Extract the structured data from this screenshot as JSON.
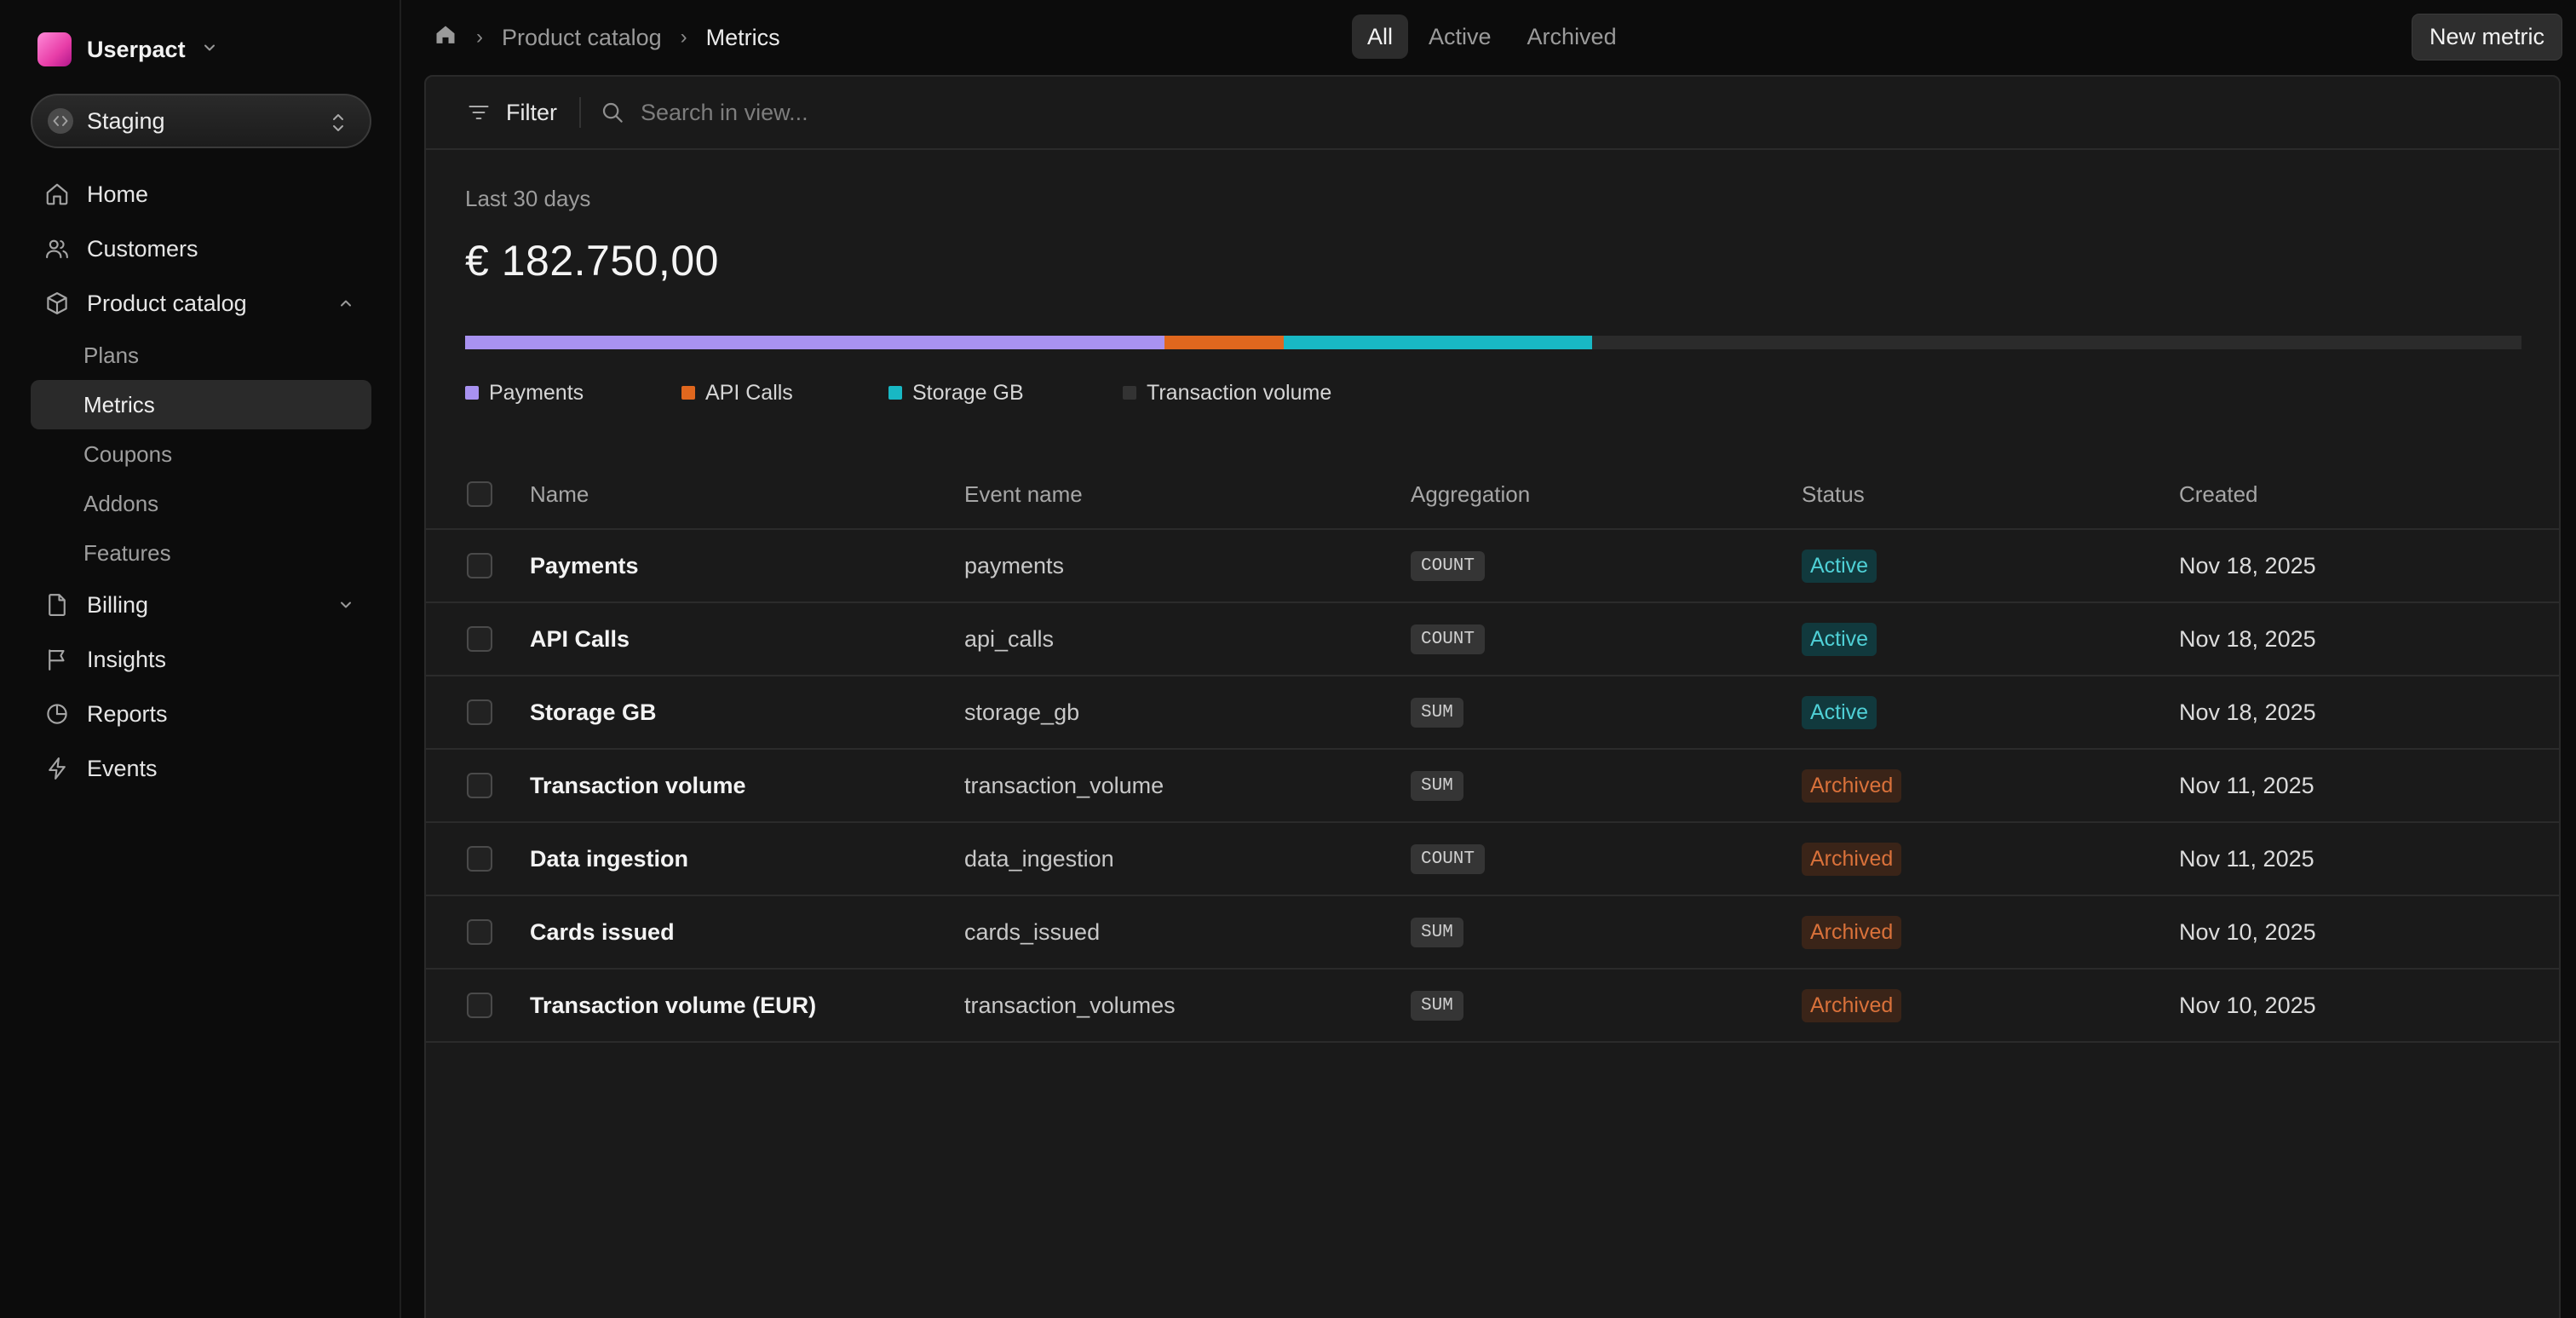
{
  "sidebar": {
    "org_name": "Userpact",
    "environment": "Staging",
    "nav": {
      "home": "Home",
      "customers": "Customers",
      "product_catalog": "Product catalog",
      "billing": "Billing",
      "insights": "Insights",
      "reports": "Reports",
      "events": "Events"
    },
    "product_catalog_items": [
      "Plans",
      "Metrics",
      "Coupons",
      "Addons",
      "Features"
    ],
    "active_item": "Metrics"
  },
  "breadcrumb": {
    "parent": "Product catalog",
    "current": "Metrics"
  },
  "filter_tabs": {
    "all": "All",
    "active": "Active",
    "archived": "Archived",
    "selected": "All"
  },
  "new_metric_label": "New metric",
  "toolbar": {
    "filter_label": "Filter",
    "search_placeholder": "Search in view..."
  },
  "summary": {
    "period": "Last 30 days",
    "total": "€ 182.750,00"
  },
  "usage_bar": {
    "segments": [
      {
        "name": "Payments",
        "share": 0.34,
        "color": "#a892f0"
      },
      {
        "name": "API Calls",
        "share": 0.058,
        "color": "#e0671e"
      },
      {
        "name": "Storage GB",
        "share": 0.15,
        "color": "#18b8c4"
      },
      {
        "name": "Transaction volume",
        "share": 0.452,
        "color": "#2b2b2b"
      }
    ]
  },
  "legend": {
    "payments": "Payments",
    "api_calls": "API Calls",
    "storage_gb": "Storage GB",
    "transaction_volume": "Transaction volume"
  },
  "colors": {
    "payments": "#a892f0",
    "api_calls": "#e0671e",
    "storage_gb": "#18b8c4",
    "transaction_volume": "#2b2b2b",
    "status_active": "#4fd0d6",
    "status_archived": "#d9713a"
  },
  "table": {
    "columns": {
      "name": "Name",
      "event_name": "Event name",
      "aggregation": "Aggregation",
      "status": "Status",
      "created": "Created"
    },
    "rows": [
      {
        "name": "Payments",
        "event": "payments",
        "aggregation": "COUNT",
        "status": "Active",
        "created": "Nov 18, 2025"
      },
      {
        "name": "API Calls",
        "event": "api_calls",
        "aggregation": "COUNT",
        "status": "Active",
        "created": "Nov 18, 2025"
      },
      {
        "name": "Storage GB",
        "event": "storage_gb",
        "aggregation": "SUM",
        "status": "Active",
        "created": "Nov 18, 2025"
      },
      {
        "name": "Transaction volume",
        "event": "transaction_volume",
        "aggregation": "SUM",
        "status": "Archived",
        "created": "Nov 11, 2025"
      },
      {
        "name": "Data ingestion",
        "event": "data_ingestion",
        "aggregation": "COUNT",
        "status": "Archived",
        "created": "Nov 11, 2025"
      },
      {
        "name": "Cards issued",
        "event": "cards_issued",
        "aggregation": "SUM",
        "status": "Archived",
        "created": "Nov 10, 2025"
      },
      {
        "name": "Transaction volume (EUR)",
        "event": "transaction_volumes",
        "aggregation": "SUM",
        "status": "Archived",
        "created": "Nov 10, 2025"
      }
    ]
  }
}
